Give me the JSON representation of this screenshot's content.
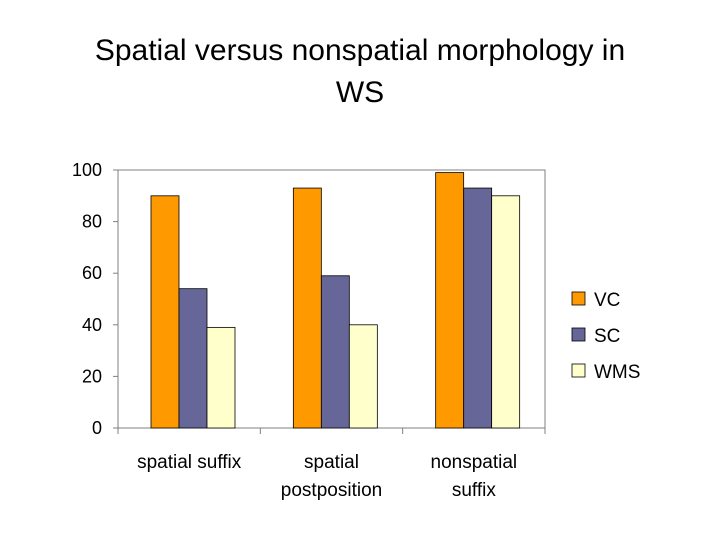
{
  "title": {
    "line1": "Spatial versus nonspatial morphology in",
    "line2": "WS"
  },
  "chart_data": {
    "type": "bar",
    "title": "Spatial versus nonspatial morphology in WS",
    "categories": [
      [
        "spatial suffix"
      ],
      [
        "spatial",
        "postposition"
      ],
      [
        "nonspatial",
        "suffix"
      ]
    ],
    "series": [
      {
        "name": "VC",
        "values": [
          90,
          93,
          99
        ],
        "color": "#FF9900"
      },
      {
        "name": "SC",
        "values": [
          54,
          59,
          93
        ],
        "color": "#666699"
      },
      {
        "name": "WMS",
        "values": [
          39,
          40,
          90
        ],
        "color": "#FFFFCC"
      }
    ],
    "ylim": [
      0,
      100
    ],
    "yticks": [
      0,
      20,
      40,
      60,
      80,
      100
    ],
    "grid": false,
    "legend": "right",
    "xlabel": "",
    "ylabel": ""
  }
}
